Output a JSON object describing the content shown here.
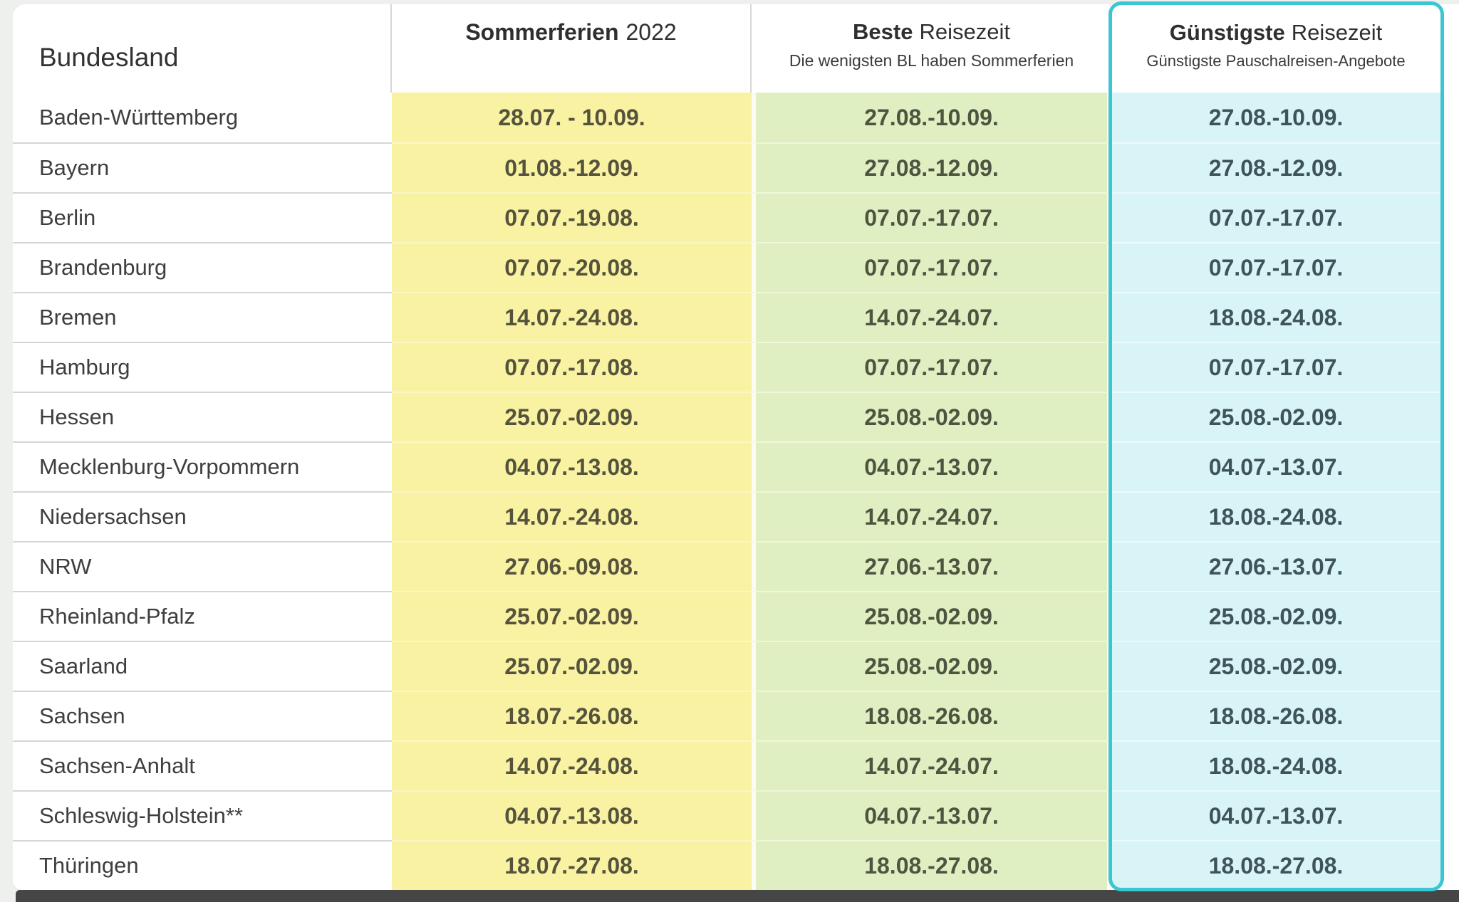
{
  "table": {
    "header": {
      "bundesland": "Bundesland",
      "sommerferien_bold": "Sommerferien",
      "sommerferien_year": "2022",
      "beste_bold": "Beste",
      "beste_rest": "Reisezeit",
      "beste_sub": "Die wenigsten BL haben Sommerferien",
      "guenstigste_bold": "Günstigste",
      "guenstigste_rest": "Reisezeit",
      "guenstigste_sub": "Günstigste Pauschalreisen-Angebote"
    },
    "rows": [
      {
        "state": "Baden-Württemberg",
        "sommerferien": "28.07. - 10.09.",
        "beste": "27.08.-10.09.",
        "guenstigste": "27.08.-10.09."
      },
      {
        "state": "Bayern",
        "sommerferien": "01.08.-12.09.",
        "beste": "27.08.-12.09.",
        "guenstigste": "27.08.-12.09."
      },
      {
        "state": "Berlin",
        "sommerferien": "07.07.-19.08.",
        "beste": "07.07.-17.07.",
        "guenstigste": "07.07.-17.07."
      },
      {
        "state": "Brandenburg",
        "sommerferien": "07.07.-20.08.",
        "beste": "07.07.-17.07.",
        "guenstigste": "07.07.-17.07."
      },
      {
        "state": "Bremen",
        "sommerferien": "14.07.-24.08.",
        "beste": "14.07.-24.07.",
        "guenstigste": "18.08.-24.08."
      },
      {
        "state": "Hamburg",
        "sommerferien": "07.07.-17.08.",
        "beste": "07.07.-17.07.",
        "guenstigste": "07.07.-17.07."
      },
      {
        "state": "Hessen",
        "sommerferien": "25.07.-02.09.",
        "beste": "25.08.-02.09.",
        "guenstigste": "25.08.-02.09."
      },
      {
        "state": "Mecklenburg-Vorpommern",
        "sommerferien": "04.07.-13.08.",
        "beste": "04.07.-13.07.",
        "guenstigste": "04.07.-13.07."
      },
      {
        "state": "Niedersachsen",
        "sommerferien": "14.07.-24.08.",
        "beste": "14.07.-24.07.",
        "guenstigste": "18.08.-24.08."
      },
      {
        "state": "NRW",
        "sommerferien": "27.06.-09.08.",
        "beste": "27.06.-13.07.",
        "guenstigste": "27.06.-13.07."
      },
      {
        "state": "Rheinland-Pfalz",
        "sommerferien": "25.07.-02.09.",
        "beste": "25.08.-02.09.",
        "guenstigste": "25.08.-02.09."
      },
      {
        "state": "Saarland",
        "sommerferien": "25.07.-02.09.",
        "beste": "25.08.-02.09.",
        "guenstigste": "25.08.-02.09."
      },
      {
        "state": "Sachsen",
        "sommerferien": "18.07.-26.08.",
        "beste": "18.08.-26.08.",
        "guenstigste": "18.08.-26.08."
      },
      {
        "state": "Sachsen-Anhalt",
        "sommerferien": "14.07.-24.08.",
        "beste": "14.07.-24.07.",
        "guenstigste": "18.08.-24.08."
      },
      {
        "state": "Schleswig-Holstein**",
        "sommerferien": "04.07.-13.08.",
        "beste": "04.07.-13.07.",
        "guenstigste": "04.07.-13.07."
      },
      {
        "state": "Thüringen",
        "sommerferien": "18.07.-27.08.",
        "beste": "18.08.-27.08.",
        "guenstigste": "18.08.-27.08."
      }
    ]
  },
  "colors": {
    "sommerferien_bg": "#f8f2a2",
    "beste_bg": "#e0efc2",
    "guenstigste_bg": "#d9f4f7",
    "highlight_border": "#3cc6d3",
    "bottom_bar": "#464646"
  },
  "chart_data": {
    "type": "table",
    "columns": [
      "Bundesland",
      "Sommerferien 2022",
      "Beste Reisezeit – Die wenigsten BL haben Sommerferien",
      "Günstigste Reisezeit – Günstigste Pauschalreisen-Angebote"
    ],
    "rows": [
      [
        "Baden-Württemberg",
        "28.07. - 10.09.",
        "27.08.-10.09.",
        "27.08.-10.09."
      ],
      [
        "Bayern",
        "01.08.-12.09.",
        "27.08.-12.09.",
        "27.08.-12.09."
      ],
      [
        "Berlin",
        "07.07.-19.08.",
        "07.07.-17.07.",
        "07.07.-17.07."
      ],
      [
        "Brandenburg",
        "07.07.-20.08.",
        "07.07.-17.07.",
        "07.07.-17.07."
      ],
      [
        "Bremen",
        "14.07.-24.08.",
        "14.07.-24.07.",
        "18.08.-24.08."
      ],
      [
        "Hamburg",
        "07.07.-17.08.",
        "07.07.-17.07.",
        "07.07.-17.07."
      ],
      [
        "Hessen",
        "25.07.-02.09.",
        "25.08.-02.09.",
        "25.08.-02.09."
      ],
      [
        "Mecklenburg-Vorpommern",
        "04.07.-13.08.",
        "04.07.-13.07.",
        "04.07.-13.07."
      ],
      [
        "Niedersachsen",
        "14.07.-24.08.",
        "14.07.-24.07.",
        "18.08.-24.08."
      ],
      [
        "NRW",
        "27.06.-09.08.",
        "27.06.-13.07.",
        "27.06.-13.07."
      ],
      [
        "Rheinland-Pfalz",
        "25.07.-02.09.",
        "25.08.-02.09.",
        "25.08.-02.09."
      ],
      [
        "Saarland",
        "25.07.-02.09.",
        "25.08.-02.09.",
        "25.08.-02.09."
      ],
      [
        "Sachsen",
        "18.07.-26.08.",
        "18.08.-26.08.",
        "18.08.-26.08."
      ],
      [
        "Sachsen-Anhalt",
        "14.07.-24.08.",
        "14.07.-24.07.",
        "18.08.-24.08."
      ],
      [
        "Schleswig-Holstein**",
        "04.07.-13.08.",
        "04.07.-13.07.",
        "04.07.-13.07."
      ],
      [
        "Thüringen",
        "18.07.-27.08.",
        "18.08.-27.08.",
        "18.08.-27.08."
      ]
    ]
  }
}
